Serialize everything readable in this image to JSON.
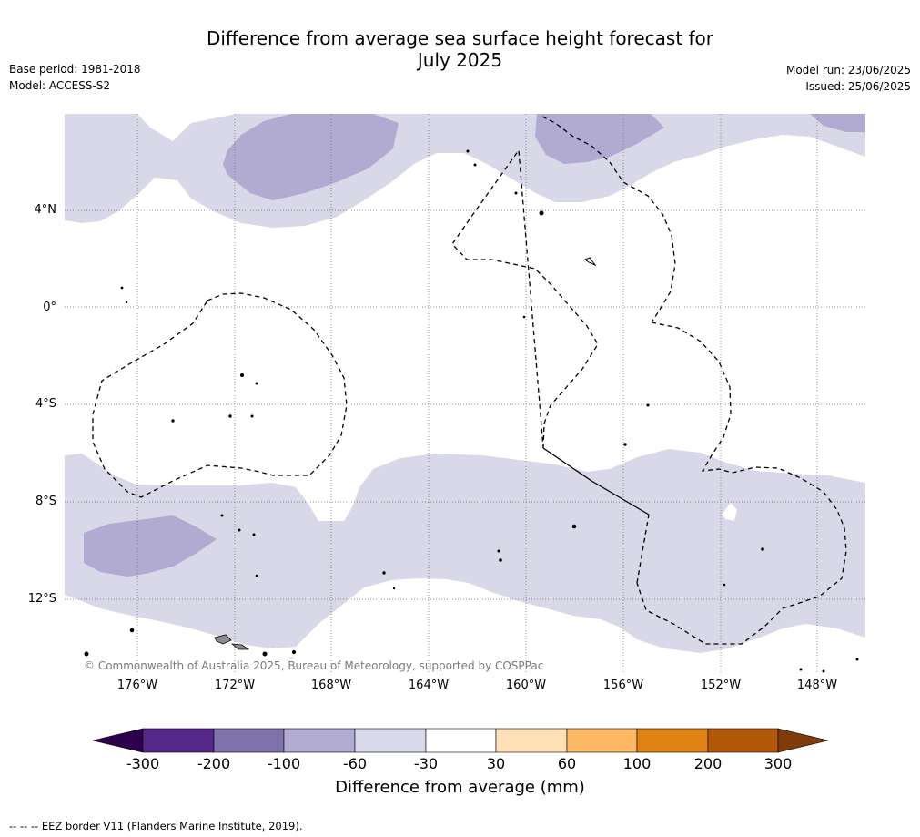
{
  "header": {
    "title_line1": "Difference from average sea surface height forecast for",
    "title_line2": "July 2025",
    "base_period": "Base period: 1981-2018",
    "model": "Model: ACCESS-S2",
    "model_run": "Model run: 23/06/2025",
    "issued": "Issued: 25/06/2025"
  },
  "map": {
    "lat_labels": [
      "4°N",
      "0°",
      "4°S",
      "8°S",
      "12°S"
    ],
    "lon_labels": [
      "176°W",
      "172°W",
      "168°W",
      "164°W",
      "160°W",
      "156°W",
      "152°W",
      "148°W"
    ],
    "copyright": "© Commonwealth of Australia 2025, Bureau of Meteorology, supported by COSPPac",
    "colors": {
      "ocean": "#ffffff",
      "light_purple": "#d8d8e9",
      "mid_purple": "#b1abd2",
      "land": "#8c8c8c"
    }
  },
  "colorbar": {
    "ticks": [
      "-300",
      "-200",
      "-100",
      "-60",
      "-30",
      "30",
      "60",
      "100",
      "200",
      "300"
    ],
    "colors": [
      "#2d004b",
      "#542788",
      "#8073ac",
      "#b2abd2",
      "#d8daeb",
      "#ffffff",
      "#fee0b6",
      "#fdb863",
      "#e08214",
      "#b35806",
      "#7f3b08"
    ],
    "label": "Difference from average (mm)"
  },
  "footnote": "--  --  -- EEZ border V11 (Flanders Marine Institute, 2019)."
}
